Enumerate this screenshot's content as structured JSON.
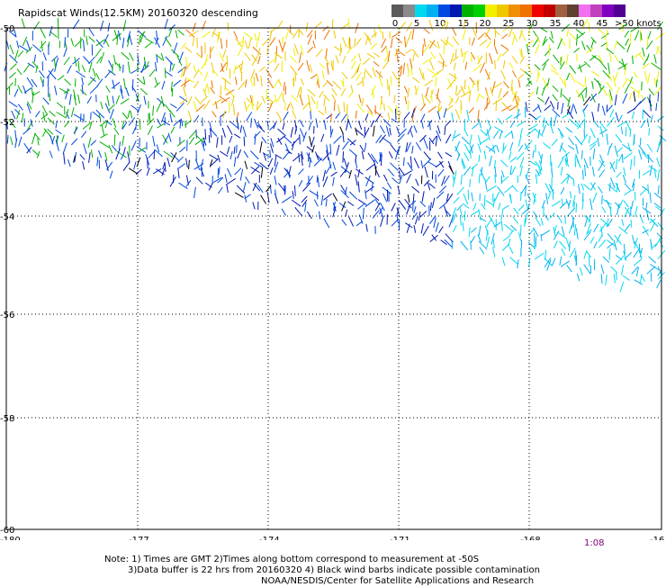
{
  "title": "Rapidscat Winds(12.5KM) 20160320 descending",
  "legend": {
    "colors": [
      "#5a5a5a",
      "#8a8a8a",
      "#00d8f0",
      "#00b0f0",
      "#0048e0",
      "#0018b0",
      "#00b000",
      "#00d000",
      "#f0f000",
      "#f0c800",
      "#f09000",
      "#f07000",
      "#f00000",
      "#c00000",
      "#a06040",
      "#604030",
      "#f070f0",
      "#c040c0",
      "#8000c0",
      "#500090"
    ],
    "labels": [
      "0",
      "5",
      "10",
      "15",
      "20",
      "25",
      "30",
      "35",
      "40",
      "45",
      ">50 knots"
    ]
  },
  "axes": {
    "x_ticks": [
      "-180",
      "-177",
      "-174",
      "-171",
      "-168",
      "-16"
    ],
    "y_ticks": [
      "-50",
      "-52",
      "-54",
      "-56",
      "-58",
      "-60"
    ]
  },
  "time_label": "1:08",
  "notes": {
    "line1": "Note: 1) Times are GMT 2)Times along bottom correspond to measurement at -50S",
    "line2": "3)Data buffer is 22 hrs from 20160320 4) Black wind barbs indicate possible contamination",
    "line3": "NOAA/NESDIS/Center for Satellite Applications and Research"
  }
}
